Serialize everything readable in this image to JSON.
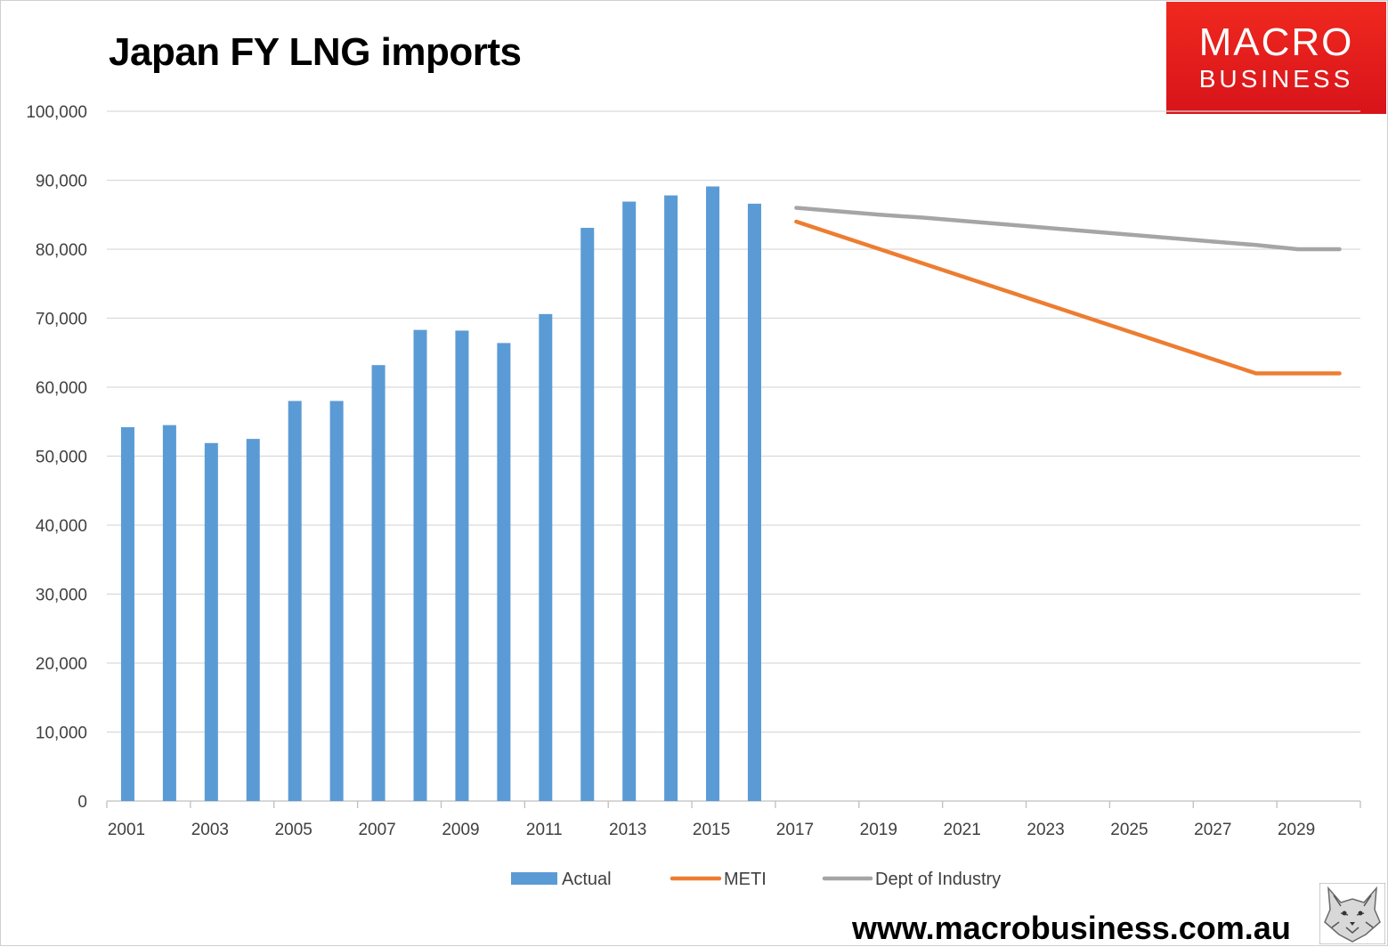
{
  "title": "Japan FY LNG imports",
  "logo": {
    "line1": "MACRO",
    "line2": "BUSINESS",
    "color": "#e41e1e"
  },
  "website": "www.macrobusiness.com.au",
  "mascot_icon": "wolf-head-icon",
  "colors": {
    "actual": "#5b9bd5",
    "meti": "#ed7d31",
    "industry": "#a5a5a5",
    "grid": "#d9d9d9",
    "axis_text": "#404040"
  },
  "chart_data": {
    "type": "bar",
    "title": "Japan FY LNG imports",
    "xlabel": "",
    "ylabel": "",
    "ylim": [
      0,
      100000
    ],
    "yticks": [
      0,
      10000,
      20000,
      30000,
      40000,
      50000,
      60000,
      70000,
      80000,
      90000,
      100000
    ],
    "ytick_labels": [
      "0",
      "10,000",
      "20,000",
      "30,000",
      "40,000",
      "50,000",
      "60,000",
      "70,000",
      "80,000",
      "90,000",
      "100,000"
    ],
    "x": [
      2001,
      2002,
      2003,
      2004,
      2005,
      2006,
      2007,
      2008,
      2009,
      2010,
      2011,
      2012,
      2013,
      2014,
      2015,
      2016,
      2017,
      2018,
      2019,
      2020,
      2021,
      2022,
      2023,
      2024,
      2025,
      2026,
      2027,
      2028,
      2029,
      2030
    ],
    "xtick_labels": [
      "2001",
      "2003",
      "2005",
      "2007",
      "2009",
      "2011",
      "2013",
      "2015",
      "2017",
      "2019",
      "2021",
      "2023",
      "2025",
      "2027",
      "2029"
    ],
    "grid": true,
    "legend_position": "bottom",
    "series": [
      {
        "name": "Actual",
        "type": "bar",
        "values": [
          54200,
          54500,
          51900,
          52500,
          58000,
          58000,
          63200,
          68300,
          68200,
          66400,
          70600,
          83100,
          86900,
          87800,
          89100,
          86600,
          null,
          null,
          null,
          null,
          null,
          null,
          null,
          null,
          null,
          null,
          null,
          null,
          null,
          null
        ]
      },
      {
        "name": "METI",
        "type": "line",
        "values": [
          null,
          null,
          null,
          null,
          null,
          null,
          null,
          null,
          null,
          null,
          null,
          null,
          null,
          null,
          null,
          null,
          84000,
          82000,
          80000,
          78000,
          76000,
          74000,
          72000,
          70000,
          68000,
          66000,
          64000,
          62000,
          62000,
          62000
        ]
      },
      {
        "name": "Dept of Industry",
        "type": "line",
        "values": [
          null,
          null,
          null,
          null,
          null,
          null,
          null,
          null,
          null,
          null,
          null,
          null,
          null,
          null,
          null,
          null,
          86000,
          85500,
          85000,
          84600,
          84100,
          83600,
          83100,
          82600,
          82100,
          81600,
          81100,
          80600,
          80000,
          80000
        ]
      }
    ]
  }
}
